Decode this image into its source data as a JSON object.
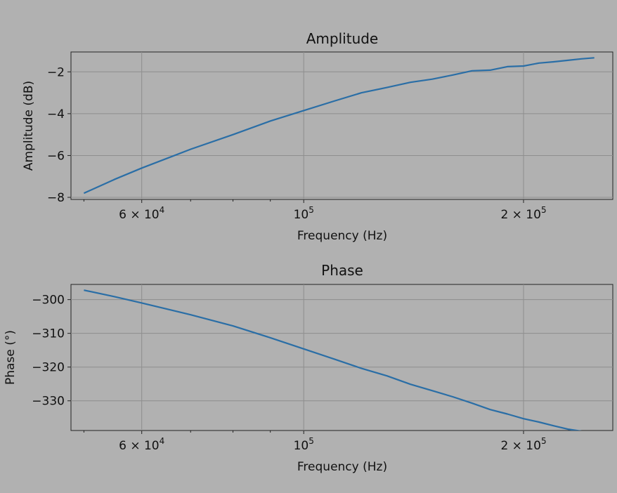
{
  "chart_data": [
    {
      "type": "line",
      "title": "Amplitude",
      "xlabel": "Frequency (Hz)",
      "ylabel": "Amplitude (dB)",
      "xscale": "log",
      "xlim": [
        48000,
        265000
      ],
      "ylim": [
        -8.1,
        -1.05
      ],
      "grid": true,
      "color": "#2a6ea6",
      "x_ticks": [
        {
          "value": 60000,
          "base": "6 × 10",
          "exp": "4"
        },
        {
          "value": 100000,
          "base": "10",
          "exp": "5"
        },
        {
          "value": 200000,
          "base": "2 × 10",
          "exp": "5"
        }
      ],
      "y_ticks": [
        -2,
        -4,
        -6,
        -8
      ],
      "y_tick_labels": [
        "−2",
        "−4",
        "−6",
        "−8"
      ],
      "series": [
        {
          "x": [
            50000,
            55000,
            60000,
            70000,
            80000,
            90000,
            100000,
            110000,
            120000,
            130000,
            140000,
            150000,
            160000,
            170000,
            180000,
            190000,
            200000,
            210000,
            220000,
            230000,
            240000,
            250000
          ],
          "y": [
            -7.8,
            -7.15,
            -6.6,
            -5.7,
            -5.0,
            -4.35,
            -3.85,
            -3.4,
            -3.0,
            -2.75,
            -2.5,
            -2.35,
            -2.15,
            -1.95,
            -1.92,
            -1.75,
            -1.72,
            -1.58,
            -1.52,
            -1.45,
            -1.38,
            -1.33
          ]
        }
      ]
    },
    {
      "type": "line",
      "title": "Phase",
      "xlabel": "Frequency (Hz)",
      "ylabel": "Phase (°)",
      "xscale": "log",
      "xlim": [
        48000,
        265000
      ],
      "ylim": [
        -338.8,
        -295.5
      ],
      "grid": true,
      "color": "#2a6ea6",
      "x_ticks": [
        {
          "value": 60000,
          "base": "6 × 10",
          "exp": "4"
        },
        {
          "value": 100000,
          "base": "10",
          "exp": "5"
        },
        {
          "value": 200000,
          "base": "2 × 10",
          "exp": "5"
        }
      ],
      "y_ticks": [
        -300,
        -310,
        -320,
        -330
      ],
      "y_tick_labels": [
        "−300",
        "−310",
        "−320",
        "−330"
      ],
      "series": [
        {
          "x": [
            50000,
            55000,
            60000,
            70000,
            80000,
            90000,
            100000,
            110000,
            120000,
            130000,
            140000,
            150000,
            160000,
            170000,
            180000,
            190000,
            200000,
            210000,
            220000,
            230000,
            240000,
            250000
          ],
          "y": [
            -297.2,
            -299.1,
            -301.0,
            -304.5,
            -307.8,
            -311.3,
            -314.6,
            -317.6,
            -320.4,
            -322.6,
            -325.1,
            -327.0,
            -328.8,
            -330.7,
            -332.6,
            -333.9,
            -335.3,
            -336.3,
            -337.4,
            -338.4,
            -339.0,
            -339.7
          ]
        }
      ]
    }
  ]
}
